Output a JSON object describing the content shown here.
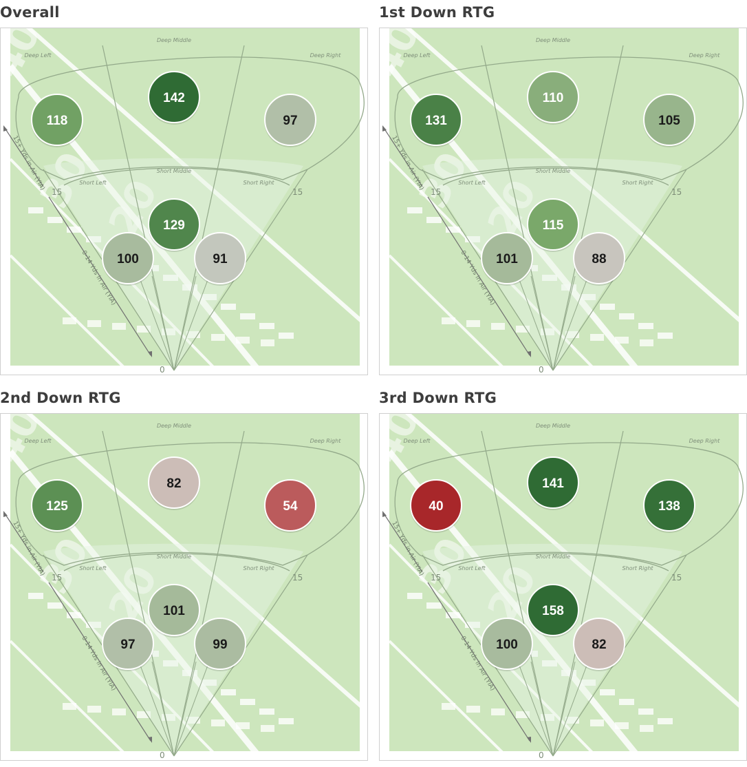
{
  "labels": {
    "zone_deep_left": "Deep Left",
    "zone_deep_middle": "Deep Middle",
    "zone_deep_right": "Deep Right",
    "zone_short_left": "Short Left",
    "zone_short_middle": "Short Middle",
    "zone_short_right": "Short Right",
    "axis_deep": "15+ Yds in Air (YIA)",
    "axis_short": "0-14 Yds in Air (YIA)",
    "tick_15": "15",
    "tick_0": "0",
    "field_numbers": [
      "40",
      "30",
      "20"
    ]
  },
  "colors": {
    "field_bg": "#cde6bd",
    "field_lines": "#ffffff",
    "fan_lines": "#93a98a",
    "dark_green": "#2f6b34",
    "light_red": "#d8a9a7",
    "dark_red": "#a8272a"
  },
  "chart_data": [
    {
      "type": "heatmap",
      "title": "Overall",
      "zones": [
        "Deep Left",
        "Deep Middle",
        "Deep Right",
        "Short Left",
        "Short Middle",
        "Short Right"
      ],
      "values": [
        118,
        142,
        97,
        100,
        129,
        91
      ]
    },
    {
      "type": "heatmap",
      "title": "1st Down RTG",
      "zones": [
        "Deep Left",
        "Deep Middle",
        "Deep Right",
        "Short Left",
        "Short Middle",
        "Short Right"
      ],
      "values": [
        131,
        110,
        105,
        101,
        115,
        88
      ]
    },
    {
      "type": "heatmap",
      "title": "2nd Down RTG",
      "zones": [
        "Deep Left",
        "Deep Middle",
        "Deep Right",
        "Short Left",
        "Short Middle",
        "Short Right"
      ],
      "values": [
        125,
        82,
        54,
        97,
        101,
        99
      ]
    },
    {
      "type": "heatmap",
      "title": "3rd Down RTG",
      "zones": [
        "Deep Left",
        "Deep Middle",
        "Deep Right",
        "Short Left",
        "Short Middle",
        "Short Right"
      ],
      "values": [
        40,
        141,
        138,
        100,
        158,
        82
      ]
    }
  ]
}
